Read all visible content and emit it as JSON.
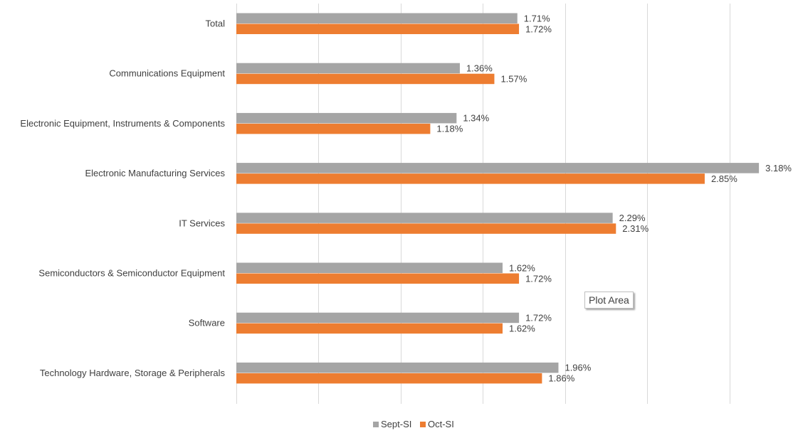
{
  "chart_data": {
    "type": "bar",
    "orientation": "horizontal",
    "categories": [
      "Total",
      "Communications Equipment",
      "Electronic Equipment, Instruments & Components",
      "Electronic Manufacturing Services",
      "IT Services",
      "Semiconductors & Semiconductor Equipment",
      "Software",
      "Technology Hardware, Storage & Peripherals"
    ],
    "series": [
      {
        "name": "Sept-SI",
        "color": "#a5a5a5",
        "values": [
          1.71,
          1.36,
          1.34,
          3.18,
          2.29,
          1.62,
          1.72,
          1.96
        ],
        "labels": [
          "1.71%",
          "1.36%",
          "1.34%",
          "3.18%",
          "2.29%",
          "1.62%",
          "1.72%",
          "1.96%"
        ]
      },
      {
        "name": "Oct-SI",
        "color": "#ed7d31",
        "values": [
          1.72,
          1.57,
          1.18,
          2.85,
          2.31,
          1.72,
          1.62,
          1.86
        ],
        "labels": [
          "1.72%",
          "1.57%",
          "1.18%",
          "2.85%",
          "2.31%",
          "1.72%",
          "1.62%",
          "1.86%"
        ]
      }
    ],
    "xlim": [
      0,
      3.5
    ],
    "grid_step": 0.5,
    "grid": true,
    "legend_position": "bottom",
    "title": "",
    "xlabel": "",
    "ylabel": ""
  },
  "tooltip": {
    "text": "Plot Area"
  }
}
